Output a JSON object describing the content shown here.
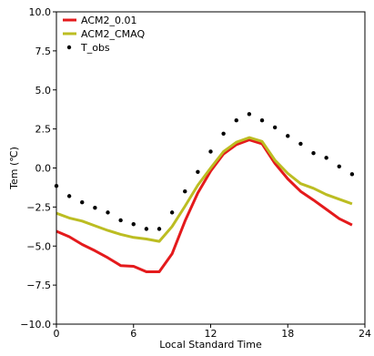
{
  "chart_data": {
    "type": "line",
    "title": "",
    "xlabel": "Local Standard Time",
    "ylabel": "Tem (℃)",
    "xlim": [
      0,
      24
    ],
    "ylim": [
      -10,
      10
    ],
    "xticks": [
      0,
      6,
      12,
      18,
      24
    ],
    "yticks": [
      -10.0,
      -7.5,
      -5.0,
      -2.5,
      0.0,
      2.5,
      5.0,
      7.5,
      10.0
    ],
    "xtick_labels": [
      "0",
      "6",
      "12",
      "18",
      "24"
    ],
    "ytick_labels": [
      "−10.0",
      "−7.5",
      "−5.0",
      "−2.5",
      "0.0",
      "2.5",
      "5.0",
      "7.5",
      "10.0"
    ],
    "grid": false,
    "legend_position": "top-left",
    "series": [
      {
        "name": "ACM2_0.01",
        "kind": "line",
        "color": "#e41a1c",
        "x": [
          0,
          1,
          2,
          3,
          4,
          5,
          6,
          7,
          8,
          9,
          10,
          11,
          12,
          13,
          14,
          15,
          16,
          17,
          18,
          19,
          20,
          21,
          22,
          23
        ],
        "values": [
          -4.05,
          -4.4,
          -4.9,
          -5.3,
          -5.75,
          -6.25,
          -6.3,
          -6.65,
          -6.65,
          -5.5,
          -3.4,
          -1.6,
          -0.2,
          0.9,
          1.5,
          1.8,
          1.55,
          0.3,
          -0.7,
          -1.5,
          -2.05,
          -2.65,
          -3.25,
          -3.65
        ]
      },
      {
        "name": "ACM2_CMAQ",
        "kind": "line",
        "color": "#bcbd22",
        "x": [
          0,
          1,
          2,
          3,
          4,
          5,
          6,
          7,
          8,
          9,
          10,
          11,
          12,
          13,
          14,
          15,
          16,
          17,
          18,
          19,
          20,
          21,
          22,
          23
        ],
        "values": [
          -2.9,
          -3.2,
          -3.4,
          -3.7,
          -4.0,
          -4.25,
          -4.45,
          -4.55,
          -4.7,
          -3.75,
          -2.45,
          -1.1,
          0.0,
          1.05,
          1.65,
          1.95,
          1.7,
          0.5,
          -0.35,
          -1.0,
          -1.3,
          -1.7,
          -2.0,
          -2.3
        ]
      },
      {
        "name": "T_obs",
        "kind": "scatter",
        "color": "#000000",
        "x": [
          0,
          1,
          2,
          3,
          4,
          5,
          6,
          7,
          8,
          9,
          10,
          11,
          12,
          13,
          14,
          15,
          16,
          17,
          18,
          19,
          20,
          21,
          22,
          23
        ],
        "values": [
          -1.15,
          -1.8,
          -2.2,
          -2.55,
          -2.85,
          -3.35,
          -3.6,
          -3.9,
          -3.9,
          -2.85,
          -1.5,
          -0.25,
          1.05,
          2.2,
          3.05,
          3.45,
          3.05,
          2.6,
          2.05,
          1.55,
          0.95,
          0.65,
          0.1,
          -0.4
        ]
      }
    ]
  }
}
